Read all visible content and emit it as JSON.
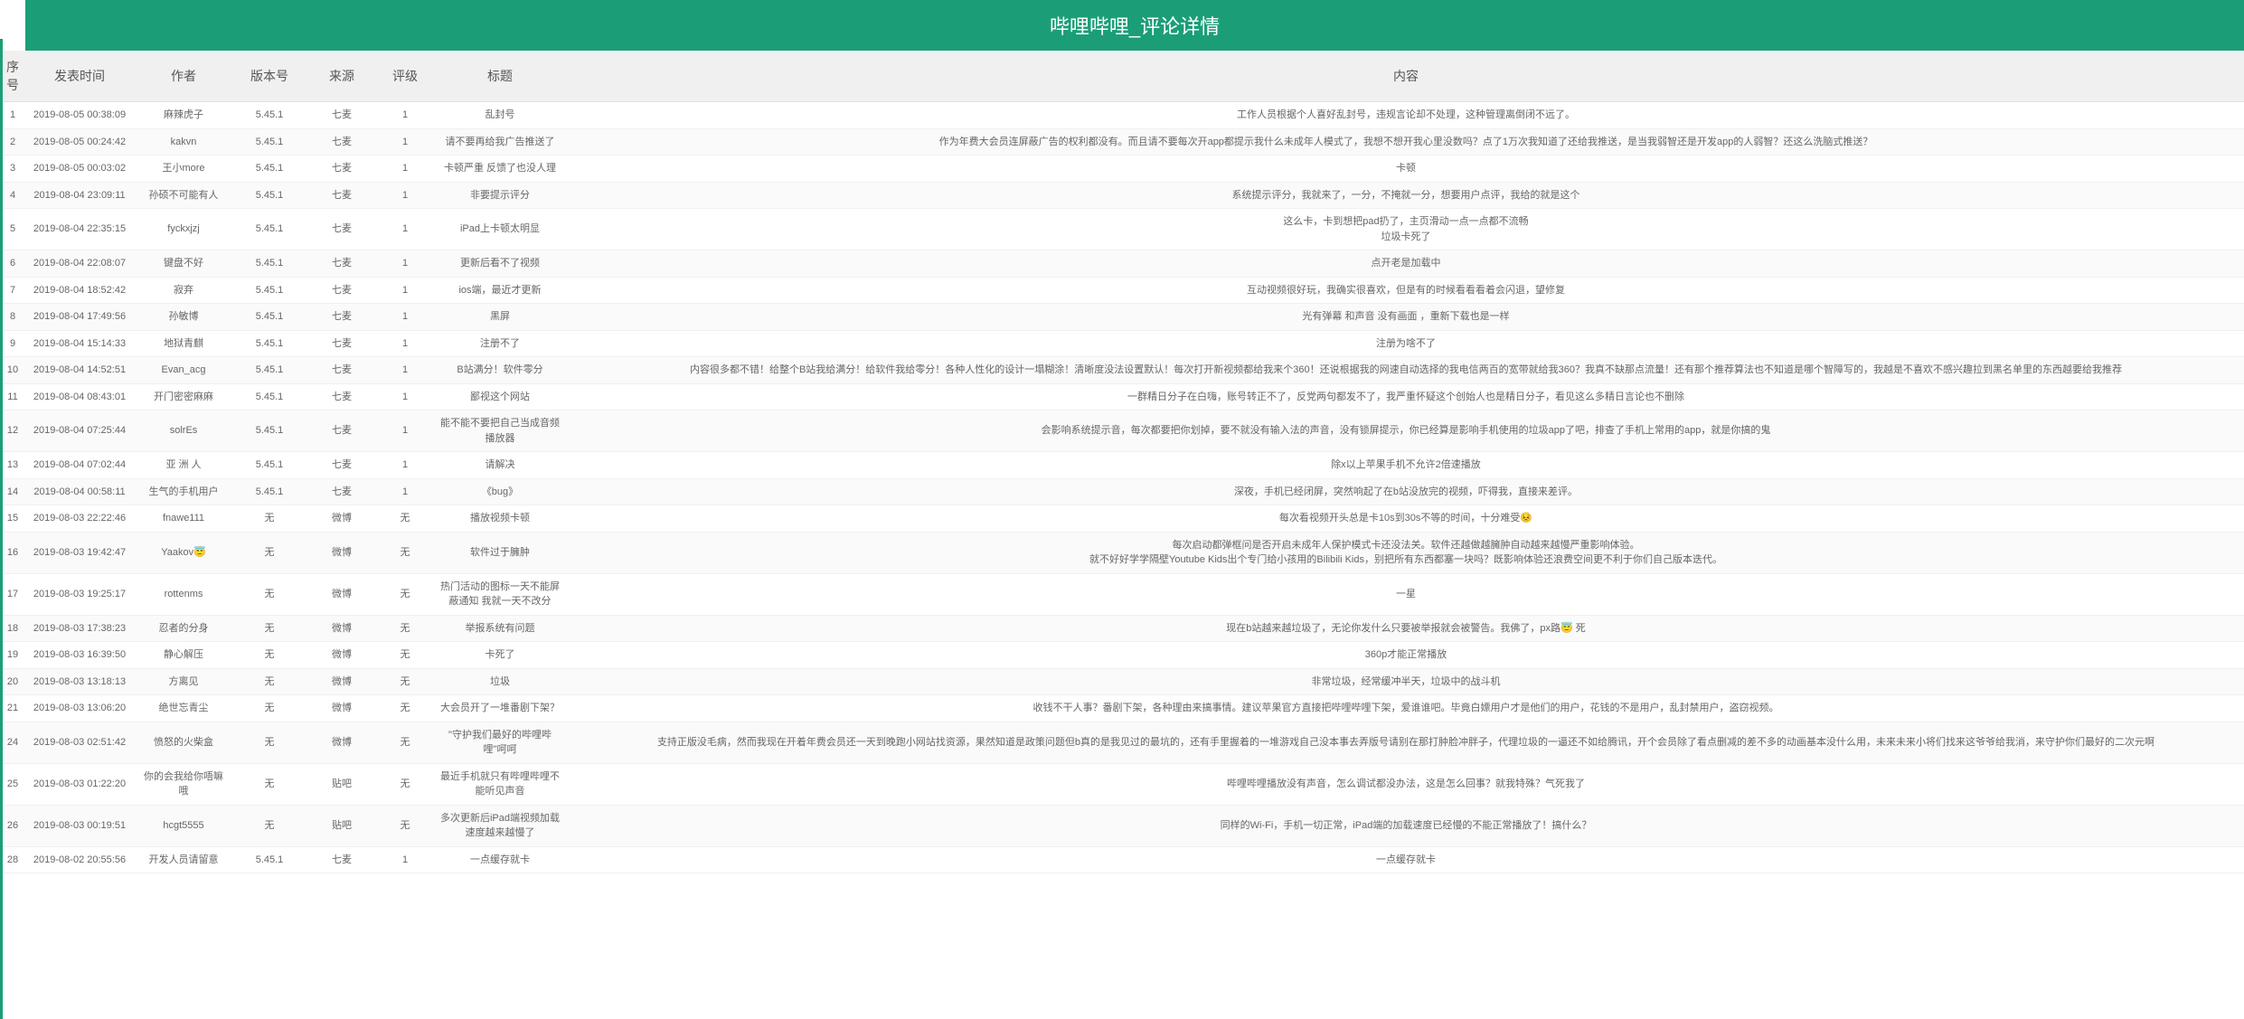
{
  "header": {
    "title": "哔哩哔哩_评论详情"
  },
  "columns": {
    "idx": "序号",
    "time": "发表时间",
    "author": "作者",
    "version": "版本号",
    "source": "来源",
    "rating": "评级",
    "title": "标题",
    "content": "内容"
  },
  "rows": [
    {
      "idx": "1",
      "time": "2019-08-05 00:38:09",
      "author": "麻辣虎子",
      "version": "5.45.1",
      "source": "七麦",
      "rating": "1",
      "title": "乱封号",
      "content": "工作人员根据个人喜好乱封号，违规言论却不处理，这种管理离倒闭不远了。"
    },
    {
      "idx": "2",
      "time": "2019-08-05 00:24:42",
      "author": "kakvn",
      "version": "5.45.1",
      "source": "七麦",
      "rating": "1",
      "title": "请不要再给我广告推送了",
      "content": "作为年费大会员连屏蔽广告的权利都没有。而且请不要每次开app都提示我什么未成年人模式了，我想不想开我心里没数吗？点了1万次我知道了还给我推送，是当我弱智还是开发app的人弱智？还这么洗脑式推送？"
    },
    {
      "idx": "3",
      "time": "2019-08-05 00:03:02",
      "author": "王小more",
      "version": "5.45.1",
      "source": "七麦",
      "rating": "1",
      "title": "卡顿严重 反馈了也没人理",
      "content": "卡顿"
    },
    {
      "idx": "4",
      "time": "2019-08-04 23:09:11",
      "author": "孙硕不可能有人",
      "version": "5.45.1",
      "source": "七麦",
      "rating": "1",
      "title": "非要提示评分",
      "content": "系统提示评分，我就来了，一分，不掩就一分，想要用户点评，我给的就是这个"
    },
    {
      "idx": "5",
      "time": "2019-08-04 22:35:15",
      "author": "fyckxjzj",
      "version": "5.45.1",
      "source": "七麦",
      "rating": "1",
      "title": "iPad上卡顿太明显",
      "content": "这么卡，卡到想把pad扔了，主页滑动一点一点都不流畅\n垃圾卡死了"
    },
    {
      "idx": "6",
      "time": "2019-08-04 22:08:07",
      "author": "键盘不好",
      "version": "5.45.1",
      "source": "七麦",
      "rating": "1",
      "title": "更新后看不了视频",
      "content": "点开老是加载中"
    },
    {
      "idx": "7",
      "time": "2019-08-04 18:52:42",
      "author": "寂弃",
      "version": "5.45.1",
      "source": "七麦",
      "rating": "1",
      "title": "ios端，最近才更新",
      "content": "互动视频很好玩，我确实很喜欢，但是有的时候看看看着会闪退，望修复"
    },
    {
      "idx": "8",
      "time": "2019-08-04 17:49:56",
      "author": "孙敏博",
      "version": "5.45.1",
      "source": "七麦",
      "rating": "1",
      "title": "黑屏",
      "content": "光有弹幕 和声音 没有画面 ，重新下载也是一样"
    },
    {
      "idx": "9",
      "time": "2019-08-04 15:14:33",
      "author": "地狱青麒",
      "version": "5.45.1",
      "source": "七麦",
      "rating": "1",
      "title": "注册不了",
      "content": "注册为啥不了"
    },
    {
      "idx": "10",
      "time": "2019-08-04 14:52:51",
      "author": "Evan_acg",
      "version": "5.45.1",
      "source": "七麦",
      "rating": "1",
      "title": "B站满分！软件零分",
      "content": "内容很多都不错！给整个B站我给满分！给软件我给零分！各种人性化的设计一塌糊涂！清晰度没法设置默认！每次打开新视频都给我来个360！还说根据我的网速自动选择的我电信两百的宽带就给我360？我真不缺那点流量！还有那个推荐算法也不知道是哪个智障写的，我越是不喜欢不感兴趣拉到黑名单里的东西越要给我推荐"
    },
    {
      "idx": "11",
      "time": "2019-08-04 08:43:01",
      "author": "开门密密麻麻",
      "version": "5.45.1",
      "source": "七麦",
      "rating": "1",
      "title": "鄙视这个网站",
      "content": "一群精日分子在白嗨，账号转正不了，反党两句都发不了，我严重怀疑这个创始人也是精日分子，看见这么多精日言论也不删除"
    },
    {
      "idx": "12",
      "time": "2019-08-04 07:25:44",
      "author": "solrEs",
      "version": "5.45.1",
      "source": "七麦",
      "rating": "1",
      "title": "能不能不要把自己当成音频播放器",
      "content": "会影响系统提示音，每次都要把你划掉，要不就没有输入法的声音，没有锁屏提示，你已经算是影响手机使用的垃圾app了吧，排查了手机上常用的app，就是你搞的鬼"
    },
    {
      "idx": "13",
      "time": "2019-08-04 07:02:44",
      "author": "亚 洲 人",
      "version": "5.45.1",
      "source": "七麦",
      "rating": "1",
      "title": "请解决",
      "content": "除x以上苹果手机不允许2倍速播放"
    },
    {
      "idx": "14",
      "time": "2019-08-04 00:58:11",
      "author": "生气的手机用户",
      "version": "5.45.1",
      "source": "七麦",
      "rating": "1",
      "title": "《bug》",
      "content": "深夜，手机已经闭屏，突然响起了在b站没放完的视频，吓得我，直接来差评。"
    },
    {
      "idx": "15",
      "time": "2019-08-03 22:22:46",
      "author": "fnawe111",
      "version": "无",
      "source": "微博",
      "rating": "无",
      "title": "播放视频卡顿",
      "content": "每次看视频开头总是卡10s到30s不等的时间，十分难受😣"
    },
    {
      "idx": "16",
      "time": "2019-08-03 19:42:47",
      "author": "Yaakov😇",
      "version": "无",
      "source": "微博",
      "rating": "无",
      "title": "软件过于臃肿",
      "content": "每次启动都弹框问是否开启未成年人保护模式卡还没法关。软件还越做越臃肿自动越来越慢严重影响体验。\n就不好好学学隔壁Youtube Kids出个专门给小孩用的Bilibili Kids，别把所有东西都塞一块吗？既影响体验还浪费空间更不利于你们自己版本迭代。"
    },
    {
      "idx": "17",
      "time": "2019-08-03 19:25:17",
      "author": "rottenms",
      "version": "无",
      "source": "微博",
      "rating": "无",
      "title": "热门活动的图标一天不能屏蔽通知 我就一天不改分",
      "content": "一星"
    },
    {
      "idx": "18",
      "time": "2019-08-03 17:38:23",
      "author": "忍者的分身",
      "version": "无",
      "source": "微博",
      "rating": "无",
      "title": "举报系统有问题",
      "content": "现在b站越来越垃圾了，无论你发什么只要被举报就会被警告。我佛了，px路😇 死"
    },
    {
      "idx": "19",
      "time": "2019-08-03 16:39:50",
      "author": "静心解压",
      "version": "无",
      "source": "微博",
      "rating": "无",
      "title": "卡死了",
      "content": "360p才能正常播放"
    },
    {
      "idx": "20",
      "time": "2019-08-03 13:18:13",
      "author": "方离见",
      "version": "无",
      "source": "微博",
      "rating": "无",
      "title": "垃圾",
      "content": "非常垃圾，经常缓冲半天，垃圾中的战斗机"
    },
    {
      "idx": "21",
      "time": "2019-08-03 13:06:20",
      "author": "绝世忘青尘",
      "version": "无",
      "source": "微博",
      "rating": "无",
      "title": "大会员开了一堆番剧下架？",
      "content": "收钱不干人事？番剧下架，各种理由来搞事情。建议苹果官方直接把哔哩哔哩下架，爱谁谁吧。毕竟白嫖用户才是他们的用户，花钱的不是用户，乱封禁用户，盗窃视频。"
    },
    {
      "idx": "24",
      "time": "2019-08-03 02:51:42",
      "author": "愤怒的火柴盒",
      "version": "无",
      "source": "微博",
      "rating": "无",
      "title": "\"守护我们最好的哔哩哔哩\"呵呵",
      "content": "支持正版没毛病，然而我现在开着年费会员还一天到晚跑小网站找资源，果然知道是政策问题但b真的是我见过的最坑的，还有手里握着的一堆游戏自己没本事去弄版号请别在那打肿脸冲胖子，代理垃圾的一逼还不如给腾讯，开个会员除了看点删减的差不多的动画基本没什么用，未来未来小将们找来这爷爷给我消，来守护你们最好的二次元啊"
    },
    {
      "idx": "25",
      "time": "2019-08-03 01:22:20",
      "author": "你的会我给你唔嘛哦",
      "version": "无",
      "source": "贴吧",
      "rating": "无",
      "title": "最近手机就只有哔哩哔哩不能听见声音",
      "content": "哔哩哔哩播放没有声音，怎么调试都没办法，这是怎么回事？就我特殊？气死我了"
    },
    {
      "idx": "26",
      "time": "2019-08-03 00:19:51",
      "author": "hcgt5555",
      "version": "无",
      "source": "贴吧",
      "rating": "无",
      "title": "多次更新后iPad端视频加载速度越来越慢了",
      "content": "同样的Wi-Fi，手机一切正常，iPad端的加载速度已经慢的不能正常播放了！搞什么？"
    },
    {
      "idx": "28",
      "time": "2019-08-02 20:55:56",
      "author": "开发人员请留意",
      "version": "5.45.1",
      "source": "七麦",
      "rating": "1",
      "title": "一点缓存就卡",
      "content": "一点缓存就卡"
    }
  ],
  "style": {
    "header_bg": "#1b9e77",
    "header_text": "#ffffff",
    "thead_bg": "#f0f0f0",
    "row_text": "#666666"
  }
}
